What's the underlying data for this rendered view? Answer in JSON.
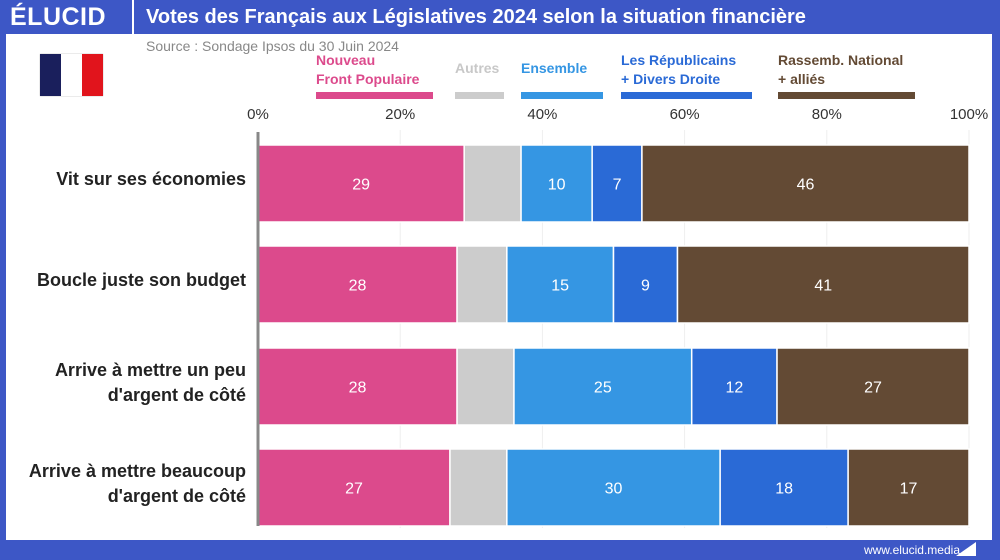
{
  "header": {
    "logo": "ÉLUCID",
    "title": "Votes des Français aux Législatives 2024 selon la situation financière"
  },
  "source": "Source : Sondage Ipsos du 30 Juin 2024",
  "flag": {
    "colors": [
      "#1a1f5c",
      "#ffffff",
      "#e1141c"
    ]
  },
  "footer": {
    "url": "www.elucid.media"
  },
  "chart_data": {
    "type": "bar",
    "orientation": "horizontal",
    "stacked": true,
    "xlim": [
      0,
      100
    ],
    "x_ticks": [
      "0%",
      "20%",
      "40%",
      "60%",
      "80%",
      "100%"
    ],
    "categories": [
      "Vit sur ses économies",
      "Boucle juste son budget",
      "Arrive à mettre un peu d'argent de côté",
      "Arrive à mettre beaucoup d'argent de côté"
    ],
    "series": [
      {
        "name": "Nouveau Front Populaire",
        "color": "#dc4a8c",
        "values": [
          29,
          28,
          28,
          27
        ],
        "labeled": true
      },
      {
        "name": "Autres",
        "color": "#cccccc",
        "values": [
          8,
          7,
          8,
          8
        ],
        "labeled": false
      },
      {
        "name": "Ensemble",
        "color": "#3596e3",
        "values": [
          10,
          15,
          25,
          30
        ],
        "labeled": true
      },
      {
        "name": "Les Républicains + Divers Droite",
        "color": "#2a6ad6",
        "values": [
          7,
          9,
          12,
          18
        ],
        "labeled": true
      },
      {
        "name": "Rassemb. National + alliés",
        "color": "#634a34",
        "values": [
          46,
          41,
          27,
          17
        ],
        "labeled": true
      }
    ],
    "legend": {
      "placement": "top",
      "lines": [
        [
          "Nouveau",
          "Front Populaire"
        ],
        [
          "Autres"
        ],
        [
          "Ensemble"
        ],
        [
          "Les Républicains",
          "+ Divers Droite"
        ],
        [
          "Rassemb. National",
          " + alliés"
        ]
      ]
    }
  }
}
